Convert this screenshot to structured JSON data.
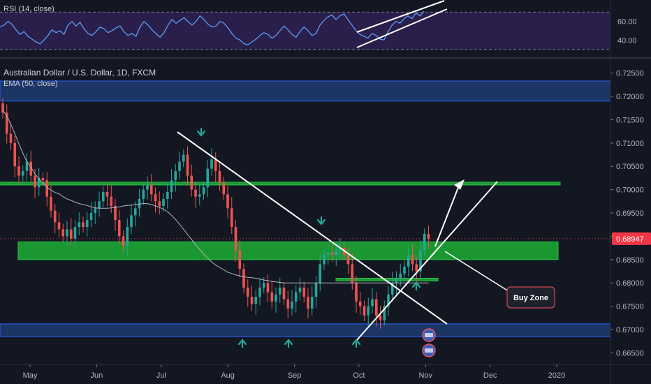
{
  "colors": {
    "background": "#131722",
    "up": "#26a69a",
    "down": "#ef5350",
    "ema": "#b2b5be",
    "rsi_line": "#5b9cf6",
    "rsi_band": "#2a1f4a",
    "zone_blue": "#1e3b70",
    "zone_green": "#1b9e34",
    "arrow_green": "#26a69a",
    "drawing": "#ffffff",
    "last_price": "#f23645"
  },
  "rsi_panel": {
    "legend": "RSI (14, close)",
    "ticks": [
      "60.00",
      "40.00"
    ],
    "values": [
      54,
      56,
      60,
      57,
      51,
      46,
      49,
      44,
      41,
      38,
      36,
      40,
      45,
      51,
      48,
      50,
      46,
      56,
      60,
      55,
      59,
      52,
      47,
      45,
      49,
      54,
      52,
      48,
      50,
      53,
      55,
      49,
      45,
      47,
      44,
      54,
      60,
      56,
      51,
      47,
      43,
      48,
      56,
      62,
      58,
      61,
      64,
      60,
      56,
      60,
      66,
      62,
      57,
      54,
      55,
      60,
      58,
      53,
      47,
      42,
      40,
      36,
      35,
      38,
      41,
      45,
      48,
      46,
      42,
      45,
      50,
      55,
      51,
      46,
      43,
      49,
      54,
      50,
      45,
      47,
      56,
      61,
      65,
      67,
      62,
      66,
      68,
      62,
      56,
      50,
      46,
      44,
      42,
      47,
      45,
      41,
      40,
      49,
      56,
      60,
      58,
      63,
      66,
      63,
      69,
      66,
      71
    ]
  },
  "main_panel": {
    "legend_title": "Australian Dollar / U.S. Dollar, 1D, FXCM",
    "legend_ema": "EMA (50, close)",
    "price_ticks": [
      "0.72500",
      "0.72000",
      "0.71500",
      "0.71000",
      "0.70500",
      "0.70000",
      "0.69500",
      "0.69000",
      "0.68500",
      "0.68000",
      "0.67500",
      "0.67000",
      "0.66500"
    ],
    "last_price": "0.68947",
    "annotation": "Buy Zone"
  },
  "time_axis": {
    "labels": [
      "May",
      "Jun",
      "Jul",
      "Aug",
      "Sep",
      "Oct",
      "Nov",
      "Dec",
      "2020"
    ]
  },
  "chart_data": {
    "type": "candlestick",
    "title": "Australian Dollar / U.S. Dollar, 1D, FXCM",
    "indicators": [
      "EMA (50, close)",
      "RSI (14, close)"
    ],
    "ylim": [
      0.6628,
      0.7275
    ],
    "x_range": [
      "2019-04-22",
      "2020-01-03"
    ],
    "closes": [
      0.7165,
      0.712,
      0.71,
      0.705,
      0.703,
      0.704,
      0.706,
      0.703,
      0.7005,
      0.7025,
      0.702,
      0.6985,
      0.6955,
      0.693,
      0.6915,
      0.69,
      0.6915,
      0.6895,
      0.692,
      0.693,
      0.692,
      0.6935,
      0.695,
      0.696,
      0.6975,
      0.6995,
      0.6985,
      0.6965,
      0.6935,
      0.69,
      0.688,
      0.692,
      0.6945,
      0.696,
      0.698,
      0.7,
      0.701,
      0.699,
      0.6975,
      0.6965,
      0.698,
      0.6995,
      0.702,
      0.704,
      0.706,
      0.7075,
      0.703,
      0.7,
      0.6985,
      0.699,
      0.7005,
      0.7045,
      0.7065,
      0.704,
      0.7015,
      0.699,
      0.696,
      0.692,
      0.687,
      0.683,
      0.679,
      0.677,
      0.6755,
      0.677,
      0.679,
      0.68,
      0.678,
      0.676,
      0.6775,
      0.679,
      0.6765,
      0.6745,
      0.676,
      0.678,
      0.679,
      0.677,
      0.6745,
      0.677,
      0.68,
      0.684,
      0.686,
      0.6865,
      0.686,
      0.687,
      0.6875,
      0.686,
      0.684,
      0.68,
      0.676,
      0.675,
      0.673,
      0.675,
      0.6765,
      0.673,
      0.672,
      0.675,
      0.6775,
      0.68,
      0.681,
      0.682,
      0.6835,
      0.686,
      0.684,
      0.6825,
      0.687,
      0.6905,
      0.6895
    ],
    "ema_50": [
      0.717,
      0.7158,
      0.714,
      0.712,
      0.7098,
      0.7078,
      0.706,
      0.7048,
      0.7034,
      0.7023,
      0.7014,
      0.7005,
      0.6999,
      0.6994,
      0.6991,
      0.6985,
      0.698,
      0.6977,
      0.6973,
      0.697,
      0.6968,
      0.6966,
      0.6963,
      0.6961,
      0.696,
      0.696,
      0.696,
      0.6961,
      0.6962,
      0.6963,
      0.6965,
      0.6966,
      0.6967,
      0.6968,
      0.6969,
      0.697,
      0.697,
      0.6968,
      0.6965,
      0.6962,
      0.6958,
      0.6953,
      0.6945,
      0.6936,
      0.6926,
      0.6915,
      0.6904,
      0.6893,
      0.6882,
      0.6872,
      0.6862,
      0.6853,
      0.6845,
      0.6838,
      0.6833,
      0.6828,
      0.6823,
      0.682,
      0.6817,
      0.6815,
      0.6813,
      0.6812,
      0.6811,
      0.681,
      0.6808,
      0.6806,
      0.6805,
      0.6803,
      0.6802,
      0.6801,
      0.68,
      0.68,
      0.68,
      0.68,
      0.68,
      0.68,
      0.68,
      0.68,
      0.68,
      0.68,
      0.68,
      0.68,
      0.68,
      0.68,
      0.68,
      0.68,
      0.68,
      0.68,
      0.68,
      0.68,
      0.68,
      0.68,
      0.68,
      0.68,
      0.68,
      0.68,
      0.68,
      0.68,
      0.68,
      0.68,
      0.68,
      0.68,
      0.68,
      0.68,
      0.68,
      0.68,
      0.68
    ],
    "zones": [
      {
        "kind": "resistance",
        "color": "blue",
        "from": 0.719,
        "to": 0.7233
      },
      {
        "kind": "resistance-line",
        "color": "green",
        "from": 0.701,
        "to": 0.7016
      },
      {
        "kind": "buy-zone",
        "color": "green",
        "from": 0.685,
        "to": 0.6888
      },
      {
        "kind": "minor-support",
        "color": "green",
        "from": 0.6804,
        "to": 0.681
      },
      {
        "kind": "support",
        "color": "blue",
        "from": 0.6685,
        "to": 0.6712
      }
    ],
    "markers": [
      {
        "dir": "down",
        "date": "2019-07-19"
      },
      {
        "dir": "down",
        "date": "2019-09-13"
      },
      {
        "dir": "up",
        "date": "2019-08-07"
      },
      {
        "dir": "up",
        "date": "2019-08-30"
      },
      {
        "dir": "up",
        "date": "2019-10-01"
      },
      {
        "dir": "up",
        "date": "2019-10-29"
      }
    ]
  }
}
